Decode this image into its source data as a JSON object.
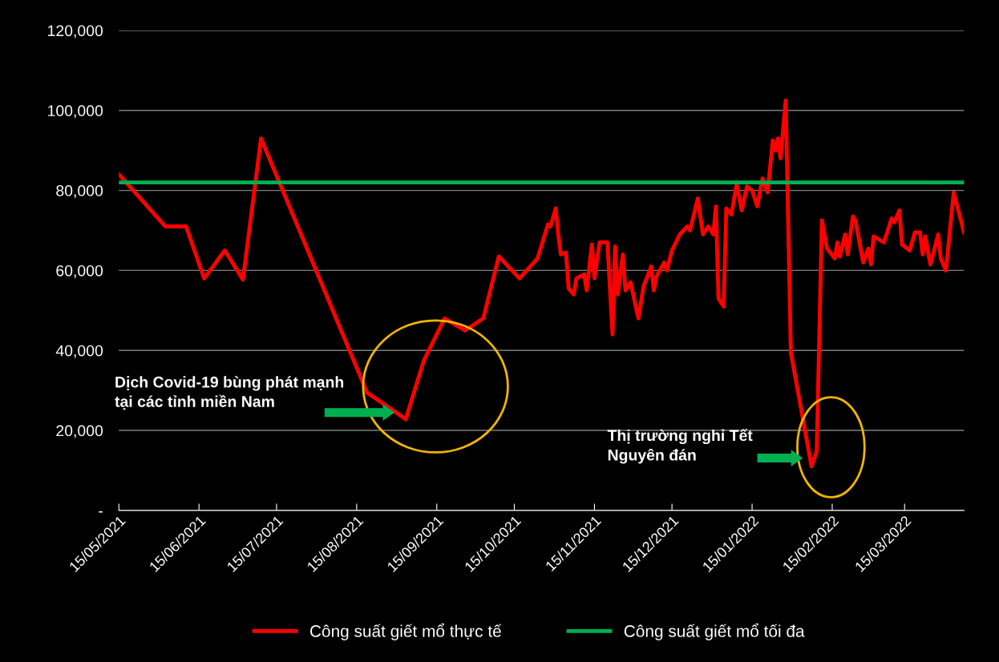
{
  "chart_data": {
    "type": "line",
    "series": [
      {
        "name": "Công suất giết mổ thực tế",
        "color": "#ff0000",
        "x": [
          "2021-05-15",
          "2021-06-02",
          "2021-06-10",
          "2021-06-17",
          "2021-06-25",
          "2021-07-02",
          "2021-07-09",
          "2021-08-19",
          "2021-09-03",
          "2021-09-10",
          "2021-09-18",
          "2021-09-26",
          "2021-10-03",
          "2021-10-09",
          "2021-10-17",
          "2021-10-24",
          "2021-10-28",
          "2021-10-29",
          "2021-10-31",
          "2021-11-01",
          "2021-11-02",
          "2021-11-04",
          "2021-11-05",
          "2021-11-07",
          "2021-11-08",
          "2021-11-11",
          "2021-11-12",
          "2021-11-14",
          "2021-11-15",
          "2021-11-17",
          "2021-11-20",
          "2021-11-22",
          "2021-11-23",
          "2021-11-24",
          "2021-11-26",
          "2021-11-27",
          "2021-11-29",
          "2021-12-02",
          "2021-12-04",
          "2021-12-07",
          "2021-12-08",
          "2021-12-09",
          "2021-12-12",
          "2021-12-13",
          "2021-12-15",
          "2021-12-18",
          "2021-12-21",
          "2021-12-22",
          "2021-12-25",
          "2021-12-27",
          "2021-12-29",
          "2021-12-31",
          "2022-01-01",
          "2022-01-02",
          "2022-01-04",
          "2022-01-05",
          "2022-01-07",
          "2022-01-09",
          "2022-01-11",
          "2022-01-13",
          "2022-01-15",
          "2022-01-17",
          "2022-01-19",
          "2022-01-21",
          "2022-01-23",
          "2022-01-24",
          "2022-01-25",
          "2022-01-26",
          "2022-01-28",
          "2022-01-30",
          "2022-02-07",
          "2022-02-09",
          "2022-02-11",
          "2022-02-13",
          "2022-02-16",
          "2022-02-17",
          "2022-02-18",
          "2022-02-20",
          "2022-02-21",
          "2022-02-23",
          "2022-02-24",
          "2022-02-26",
          "2022-02-27",
          "2022-03-01",
          "2022-03-02",
          "2022-03-03",
          "2022-03-07",
          "2022-03-10",
          "2022-03-11",
          "2022-03-13",
          "2022-03-14",
          "2022-03-17",
          "2022-03-19",
          "2022-03-21",
          "2022-03-22",
          "2022-03-23",
          "2022-03-25",
          "2022-03-28",
          "2022-03-29",
          "2022-03-31",
          "2022-04-03",
          "2022-04-07"
        ],
        "values": [
          84000,
          71000,
          71000,
          58000,
          65000,
          57700,
          93000,
          29500,
          22800,
          37500,
          48000,
          45000,
          48000,
          63500,
          58000,
          63000,
          71500,
          71000,
          75500,
          69000,
          64000,
          64500,
          55500,
          54000,
          58000,
          59000,
          55000,
          66500,
          58000,
          67000,
          67000,
          44000,
          66000,
          54000,
          64000,
          55000,
          57000,
          48000,
          56000,
          61000,
          55000,
          58500,
          62000,
          60000,
          65000,
          69000,
          71000,
          70000,
          78000,
          69000,
          71000,
          69000,
          76000,
          53000,
          51000,
          75500,
          74000,
          81500,
          75000,
          81000,
          80000,
          76000,
          83000,
          79500,
          92500,
          90000,
          93000,
          88000,
          102500,
          39500,
          11000,
          14800,
          72500,
          65500,
          63000,
          67000,
          63500,
          69000,
          64000,
          73500,
          72500,
          65500,
          62000,
          65500,
          61500,
          68500,
          67000,
          73000,
          72000,
          75000,
          66500,
          65000,
          69500,
          69500,
          64000,
          68500,
          61500,
          69000,
          63000,
          60000,
          79500,
          69500
        ]
      },
      {
        "name": "Công suất giết mổ tối đa",
        "color": "#00b050",
        "x": [
          "2021-05-15",
          "2022-04-07"
        ],
        "values": [
          82000,
          82000
        ]
      }
    ],
    "xlim": [
      "2021-05-15",
      "2022-04-07"
    ],
    "xticks": [
      {
        "value": "2021-05-15",
        "label": "15/05/2021"
      },
      {
        "value": "2021-06-15",
        "label": "15/06/2021"
      },
      {
        "value": "2021-07-15",
        "label": "15/07/2021"
      },
      {
        "value": "2021-08-15",
        "label": "15/08/2021"
      },
      {
        "value": "2021-09-15",
        "label": "15/09/2021"
      },
      {
        "value": "2021-10-15",
        "label": "15/10/2021"
      },
      {
        "value": "2021-11-15",
        "label": "15/11/2021"
      },
      {
        "value": "2021-12-15",
        "label": "15/12/2021"
      },
      {
        "value": "2022-01-15",
        "label": "15/01/2022"
      },
      {
        "value": "2022-02-15",
        "label": "15/02/2022"
      },
      {
        "value": "2022-03-15",
        "label": "15/03/2022"
      }
    ],
    "ylim": [
      0,
      120000
    ],
    "yticks": [
      {
        "value": 0,
        "label": "-"
      },
      {
        "value": 20000,
        "label": "20,000"
      },
      {
        "value": 40000,
        "label": "40,000"
      },
      {
        "value": 60000,
        "label": "60,000"
      },
      {
        "value": 80000,
        "label": "80,000"
      },
      {
        "value": 100000,
        "label": "100,000"
      },
      {
        "value": 120000,
        "label": "120,000"
      }
    ],
    "annotations": [
      "Dịch Covid-19 bùng phát mạnh\ntại các tỉnh miền Nam",
      "Thị trường nghỉ Tết\nNguyên đán"
    ],
    "grid": "y",
    "legend": "bottom",
    "marker": "none",
    "line_style": "solid"
  }
}
